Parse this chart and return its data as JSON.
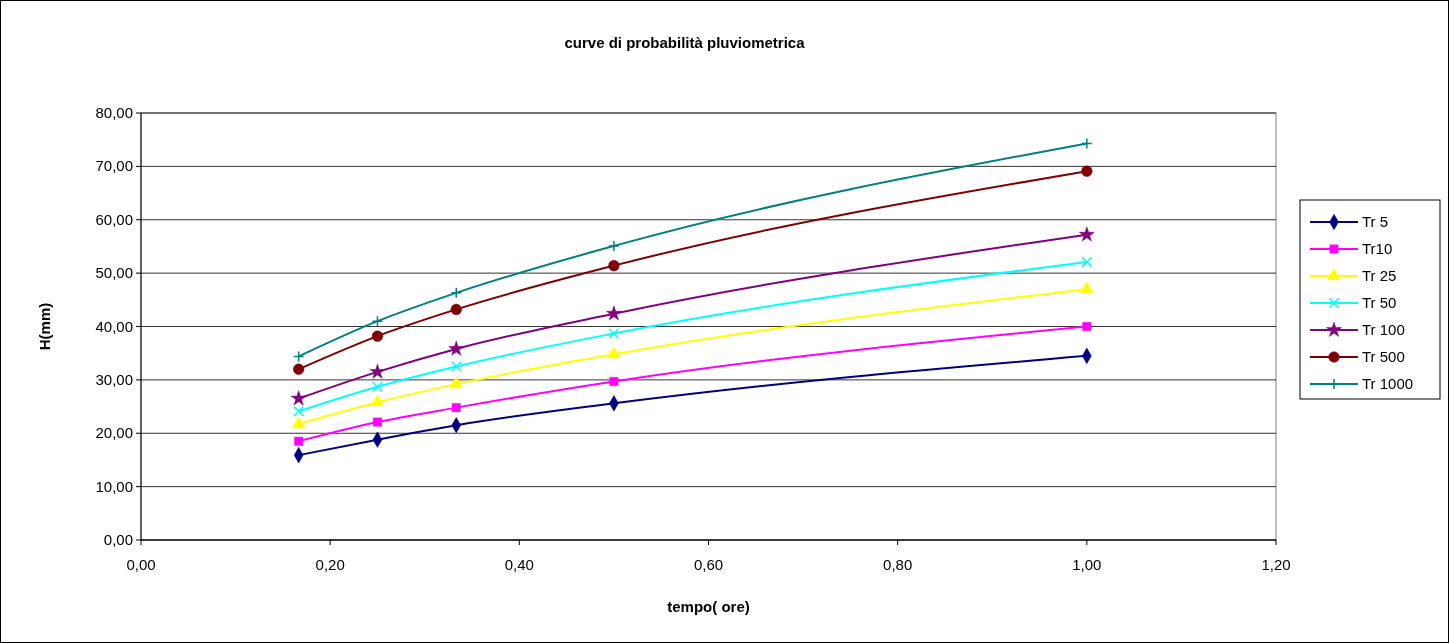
{
  "chart_data": {
    "type": "line",
    "title": "curve di probabilità pluviometrica",
    "xlabel": "tempo( ore)",
    "ylabel": "H(mm)",
    "x": [
      0.1667,
      0.25,
      0.3333,
      0.5,
      1.0
    ],
    "series": [
      {
        "name": "Tr 5",
        "color": "#000080",
        "marker": "diamond",
        "values": [
          15.9,
          18.8,
          21.5,
          25.6,
          34.5
        ]
      },
      {
        "name": "Tr10",
        "color": "#ff00ff",
        "marker": "square",
        "values": [
          18.5,
          22.1,
          24.8,
          29.7,
          40.0
        ]
      },
      {
        "name": "Tr 25",
        "color": "#ffff00",
        "marker": "triangle",
        "values": [
          21.7,
          25.8,
          29.2,
          34.8,
          47.0
        ]
      },
      {
        "name": "Tr 50",
        "color": "#00ffff",
        "marker": "cross",
        "values": [
          24.1,
          28.7,
          32.5,
          38.7,
          52.1
        ]
      },
      {
        "name": "Tr 100",
        "color": "#800080",
        "marker": "star",
        "values": [
          26.5,
          31.5,
          35.8,
          42.4,
          57.2
        ]
      },
      {
        "name": "Tr 500",
        "color": "#800000",
        "marker": "circle",
        "values": [
          32.0,
          38.2,
          43.2,
          51.4,
          69.1
        ]
      },
      {
        "name": "Tr 1000",
        "color": "#008080",
        "marker": "plus",
        "values": [
          34.4,
          41.0,
          46.3,
          55.1,
          74.3
        ]
      }
    ],
    "xlim": [
      0,
      1.2
    ],
    "xticks": [
      {
        "value": 0,
        "label": "0,00"
      },
      {
        "value": 0.2,
        "label": "0,20"
      },
      {
        "value": 0.4,
        "label": "0,40"
      },
      {
        "value": 0.6,
        "label": "0,60"
      },
      {
        "value": 0.8,
        "label": "0,80"
      },
      {
        "value": 1.0,
        "label": "1,00"
      },
      {
        "value": 1.2,
        "label": "1,20"
      }
    ],
    "ylim": [
      0,
      80
    ],
    "yticks": [
      {
        "value": 0,
        "label": "0,00"
      },
      {
        "value": 10,
        "label": "10,00"
      },
      {
        "value": 20,
        "label": "20,00"
      },
      {
        "value": 30,
        "label": "30,00"
      },
      {
        "value": 40,
        "label": "40,00"
      },
      {
        "value": 50,
        "label": "50,00"
      },
      {
        "value": 60,
        "label": "60,00"
      },
      {
        "value": 70,
        "label": "70,00"
      },
      {
        "value": 80,
        "label": "80,00"
      }
    ],
    "grid": "y",
    "legend": "right",
    "line_style": "solid"
  }
}
